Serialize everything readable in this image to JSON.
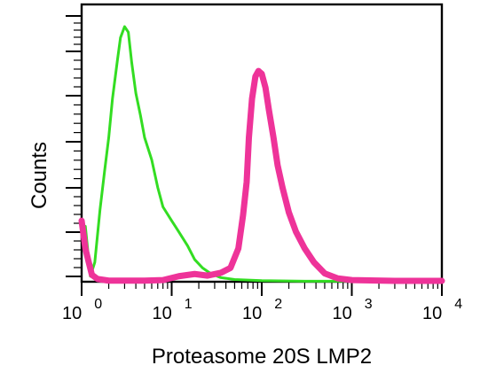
{
  "chart_data": {
    "type": "line",
    "title": "",
    "xlabel": "Proteasome 20S LMP2",
    "ylabel": "Counts",
    "x_scale": "log",
    "x_range": [
      1,
      10000
    ],
    "y_range": [
      0,
      1
    ],
    "x_ticks": [
      {
        "base": "10",
        "exponent": "0",
        "value": 1
      },
      {
        "base": "10",
        "exponent": "1",
        "value": 10
      },
      {
        "base": "10",
        "exponent": "2",
        "value": 100
      },
      {
        "base": "10",
        "exponent": "3",
        "value": 1000
      },
      {
        "base": "10",
        "exponent": "4",
        "value": 10000
      }
    ],
    "grid": false,
    "series": [
      {
        "color": "#33dd22",
        "points": [
          [
            1.0,
            0.18
          ],
          [
            1.1,
            0.2
          ],
          [
            1.25,
            0.02
          ],
          [
            1.4,
            0.07
          ],
          [
            1.6,
            0.26
          ],
          [
            1.8,
            0.4
          ],
          [
            2.0,
            0.52
          ],
          [
            2.2,
            0.66
          ],
          [
            2.5,
            0.8
          ],
          [
            2.7,
            0.88
          ],
          [
            3.0,
            0.92
          ],
          [
            3.3,
            0.9
          ],
          [
            3.6,
            0.79
          ],
          [
            4.0,
            0.68
          ],
          [
            4.5,
            0.6
          ],
          [
            5.0,
            0.52
          ],
          [
            6.0,
            0.44
          ],
          [
            7.0,
            0.34
          ],
          [
            8.0,
            0.27
          ],
          [
            10.0,
            0.22
          ],
          [
            12.0,
            0.18
          ],
          [
            15.0,
            0.13
          ],
          [
            18.0,
            0.08
          ],
          [
            22.0,
            0.05
          ],
          [
            27.0,
            0.03
          ],
          [
            35.0,
            0.015
          ],
          [
            50.0,
            0.008
          ],
          [
            100.0,
            0.004
          ],
          [
            300.0,
            0.002
          ],
          [
            1000.0,
            0.002
          ],
          [
            10000.0,
            0.002
          ]
        ]
      },
      {
        "color": "#ee3399",
        "points": [
          [
            1.0,
            0.22
          ],
          [
            1.1,
            0.12
          ],
          [
            1.2,
            0.07
          ],
          [
            1.3,
            0.025
          ],
          [
            1.5,
            0.01
          ],
          [
            2.0,
            0.004
          ],
          [
            5.0,
            0.004
          ],
          [
            8.0,
            0.006
          ],
          [
            12.0,
            0.02
          ],
          [
            18.0,
            0.028
          ],
          [
            25.0,
            0.022
          ],
          [
            35.0,
            0.032
          ],
          [
            45.0,
            0.05
          ],
          [
            55.0,
            0.12
          ],
          [
            62.0,
            0.24
          ],
          [
            68.0,
            0.36
          ],
          [
            72.0,
            0.52
          ],
          [
            78.0,
            0.66
          ],
          [
            85.0,
            0.74
          ],
          [
            92.0,
            0.76
          ],
          [
            100.0,
            0.75
          ],
          [
            110.0,
            0.7
          ],
          [
            120.0,
            0.62
          ],
          [
            135.0,
            0.52
          ],
          [
            150.0,
            0.42
          ],
          [
            170.0,
            0.34
          ],
          [
            200.0,
            0.25
          ],
          [
            240.0,
            0.18
          ],
          [
            300.0,
            0.12
          ],
          [
            380.0,
            0.07
          ],
          [
            500.0,
            0.03
          ],
          [
            700.0,
            0.012
          ],
          [
            1000.0,
            0.006
          ],
          [
            3000.0,
            0.003
          ],
          [
            10000.0,
            0.003
          ]
        ]
      }
    ]
  }
}
